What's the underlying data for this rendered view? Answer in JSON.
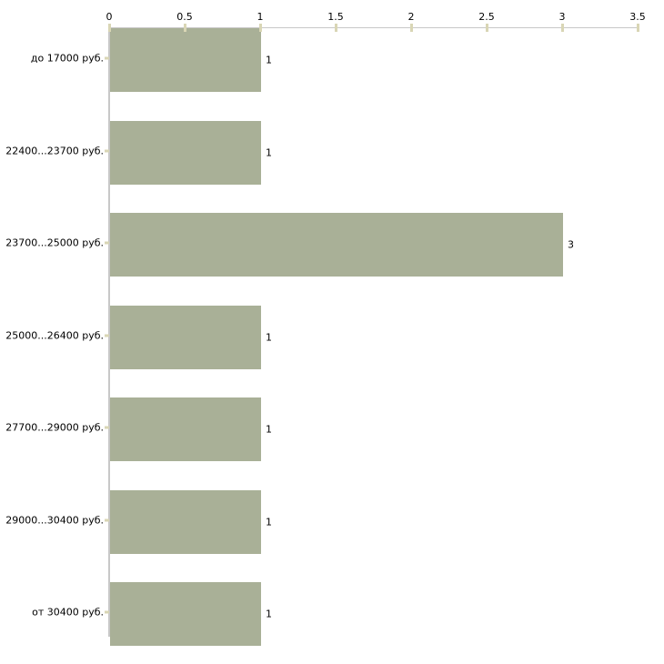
{
  "chart_data": {
    "type": "bar",
    "orientation": "horizontal",
    "title": "",
    "xlabel": "",
    "ylabel": "",
    "x_axis_position": "top",
    "categories": [
      "до 17000 руб.",
      "22400...23700 руб.",
      "23700...25000 руб.",
      "25000...26400 руб.",
      "27700...29000 руб.",
      "29000...30400 руб.",
      "от 30400 руб."
    ],
    "values": [
      1,
      1,
      3,
      1,
      1,
      1,
      1
    ],
    "bar_value_labels": [
      "1",
      "1",
      "3",
      "1",
      "1",
      "1",
      "1"
    ],
    "x_tick_labels": [
      "0",
      "0.5",
      "1",
      "1.5",
      "2",
      "2.5",
      "3",
      "3.5"
    ],
    "x_tick_values": [
      0,
      0.5,
      1,
      1.5,
      2,
      2.5,
      3,
      3.5
    ],
    "xlim": [
      0,
      3.5
    ],
    "grid": false,
    "legend": null,
    "colors": {
      "bar_fill": "#a9b097",
      "axis_line": "#c8c8c8",
      "tick_mark": "#d9d6b5",
      "label_text": "#000000",
      "background": "#ffffff"
    }
  }
}
